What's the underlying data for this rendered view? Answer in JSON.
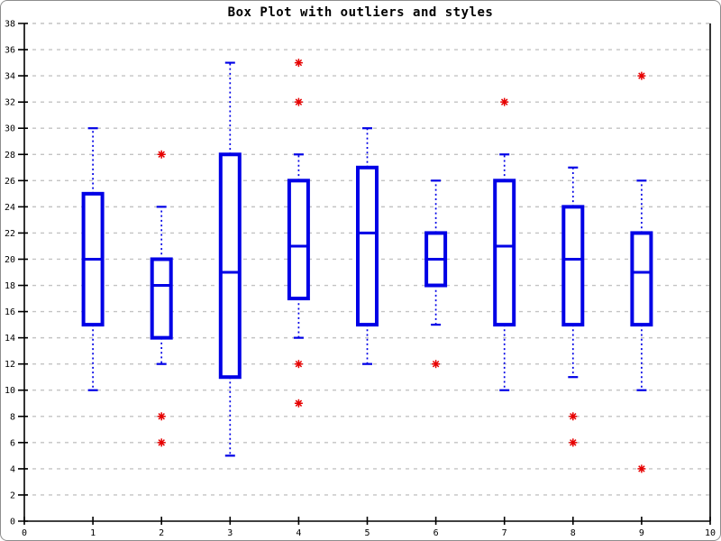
{
  "window": {
    "background": "#ffffff",
    "border_color": "#8e8e8e"
  },
  "chart_data": {
    "type": "boxplot",
    "title": "Box Plot with outliers and styles",
    "xlabel": "",
    "ylabel": "",
    "xlim": [
      0,
      10
    ],
    "ylim": [
      0,
      38
    ],
    "x_tick_step": 1,
    "y_tick_step": 2,
    "grid": "horizontal-dashed",
    "legend": "none",
    "colors": {
      "box": "#0000e6",
      "whisker": "#0000e6",
      "median": "#0000e6",
      "outlier": "#e60000",
      "axis": "#000000",
      "grid": "#c3c3c3",
      "title": "#000000",
      "background": "#ffffff"
    },
    "boxes": [
      {
        "x": 1,
        "whisker_low": 10,
        "q1": 15,
        "median": 20,
        "q3": 25,
        "whisker_high": 30,
        "outliers": []
      },
      {
        "x": 2,
        "whisker_low": 12,
        "q1": 14,
        "median": 18,
        "q3": 20,
        "whisker_high": 24,
        "outliers": [
          28,
          8,
          6
        ]
      },
      {
        "x": 3,
        "whisker_low": 5,
        "q1": 11,
        "median": 19,
        "q3": 28,
        "whisker_high": 35,
        "outliers": []
      },
      {
        "x": 4,
        "whisker_low": 14,
        "q1": 17,
        "median": 21,
        "q3": 26,
        "whisker_high": 28,
        "outliers": [
          35,
          32,
          12,
          9
        ]
      },
      {
        "x": 5,
        "whisker_low": 12,
        "q1": 15,
        "median": 22,
        "q3": 27,
        "whisker_high": 30,
        "outliers": []
      },
      {
        "x": 6,
        "whisker_low": 15,
        "q1": 18,
        "median": 20,
        "q3": 22,
        "whisker_high": 26,
        "outliers": [
          12
        ]
      },
      {
        "x": 7,
        "whisker_low": 10,
        "q1": 15,
        "median": 21,
        "q3": 26,
        "whisker_high": 28,
        "outliers": [
          32
        ]
      },
      {
        "x": 8,
        "whisker_low": 11,
        "q1": 15,
        "median": 20,
        "q3": 24,
        "whisker_high": 27,
        "outliers": [
          8,
          6
        ]
      },
      {
        "x": 9,
        "whisker_low": 10,
        "q1": 15,
        "median": 19,
        "q3": 22,
        "whisker_high": 26,
        "outliers": [
          34,
          4
        ]
      }
    ]
  }
}
